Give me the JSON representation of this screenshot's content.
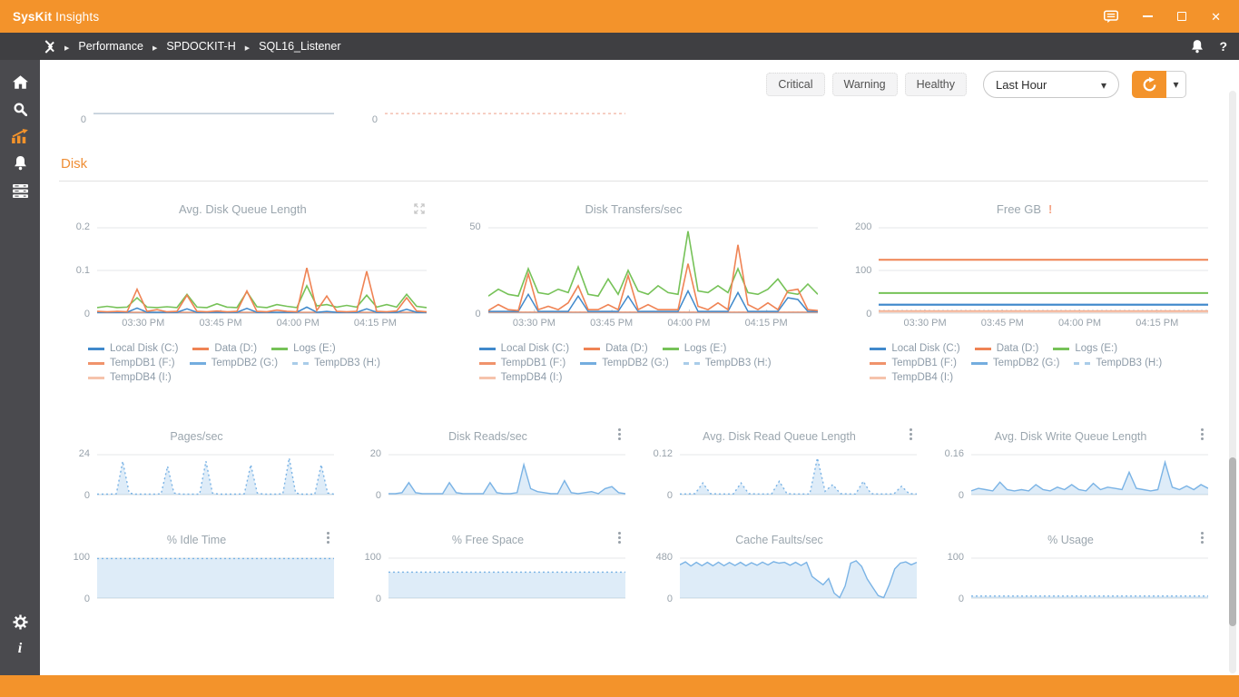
{
  "titlebar": {
    "brand_bold": "SysKit",
    "brand_rest": " Insights"
  },
  "breadcrumb": {
    "items": [
      "Performance",
      "SPDOCKIT-H",
      "SQL16_Listener"
    ]
  },
  "icons": {
    "help": "?",
    "info": "i"
  },
  "filters": {
    "chips": [
      "Critical",
      "Warning",
      "Healthy"
    ],
    "time_range": "Last Hour"
  },
  "section_title": "Disk",
  "time_labels": [
    "03:30 PM",
    "03:45 PM",
    "04:00 PM",
    "04:15 PM"
  ],
  "legend": [
    {
      "label": "Local Disk (C:)",
      "color": "#4089CB"
    },
    {
      "label": "Data (D:)",
      "color": "#EF8354"
    },
    {
      "label": "Logs (E:)",
      "color": "#76C258"
    },
    {
      "label": "TempDB1 (F:)",
      "color": "#F0936B"
    },
    {
      "label": "TempDB2 (G:)",
      "color": "#74ADDF"
    },
    {
      "label": "TempDB3 (H:)",
      "color": "#A9CCE9",
      "dash": true
    },
    {
      "label": "TempDB4 (I:)",
      "color": "#F6C3AC"
    }
  ],
  "chart_data": [
    {
      "type": "line",
      "title": "",
      "yticks": [
        0
      ],
      "ylim": [
        0,
        1
      ],
      "baseline": false,
      "series": [
        {
          "name": "flat",
          "color": "#AEBDCD",
          "width": 1.3,
          "values": [
            0.42,
            0.42
          ]
        }
      ]
    },
    {
      "type": "line",
      "title": "",
      "yticks": [
        0
      ],
      "ylim": [
        0,
        1
      ],
      "baseline": false,
      "series": [
        {
          "name": "flat",
          "color": "#F2B3A2",
          "width": 1.3,
          "dash": "3,3",
          "values": [
            0.42,
            0.42
          ]
        }
      ]
    },
    {
      "type": "line",
      "title": "Avg. Disk Queue Length",
      "yticks": [
        0.2,
        0.1,
        0
      ],
      "ylim": [
        0,
        0.2
      ],
      "grid": [
        0.2,
        0.1
      ],
      "xticks": true,
      "series": [
        {
          "name": "TempDB4 (I:)",
          "color": "#F6C3AC",
          "values": [
            0.001,
            0.001
          ]
        },
        {
          "name": "TempDB3 (H:)",
          "color": "#A9CCE9",
          "dash": "2,3",
          "values": [
            0.0015,
            0.0015
          ]
        },
        {
          "name": "TempDB2 (G:)",
          "color": "#74ADDF",
          "values": [
            0.001,
            0.001
          ]
        },
        {
          "name": "TempDB1 (F:)",
          "color": "#F0936B",
          "values": [
            0.002,
            0.002
          ]
        },
        {
          "name": "Logs (E:)",
          "color": "#76C258",
          "width": 1.6,
          "values": [
            0.013,
            0.016,
            0.013,
            0.014,
            0.036,
            0.014,
            0.013,
            0.015,
            0.013,
            0.044,
            0.014,
            0.013,
            0.022,
            0.014,
            0.013,
            0.05,
            0.015,
            0.013,
            0.02,
            0.016,
            0.013,
            0.064,
            0.017,
            0.02,
            0.014,
            0.018,
            0.014,
            0.042,
            0.014,
            0.02,
            0.014,
            0.044,
            0.016,
            0.013
          ]
        },
        {
          "name": "Local Disk (C:)",
          "color": "#4089CB",
          "width": 1.5,
          "values": [
            0.002,
            0.002,
            0.002,
            0.002,
            0.012,
            0.002,
            0.002,
            0.002,
            0.002,
            0.01,
            0.002,
            0.002,
            0.002,
            0.002,
            0.002,
            0.011,
            0.002,
            0.002,
            0.002,
            0.002,
            0.002,
            0.014,
            0.002,
            0.004,
            0.002,
            0.002,
            0.002,
            0.01,
            0.002,
            0.002,
            0.002,
            0.009,
            0.002,
            0.002
          ]
        },
        {
          "name": "Data (D:)",
          "color": "#EF8354",
          "width": 1.6,
          "values": [
            0.004,
            0.003,
            0.004,
            0.003,
            0.056,
            0.004,
            0.008,
            0.003,
            0.004,
            0.042,
            0.004,
            0.003,
            0.005,
            0.003,
            0.004,
            0.052,
            0.004,
            0.003,
            0.007,
            0.004,
            0.003,
            0.106,
            0.006,
            0.04,
            0.004,
            0.003,
            0.004,
            0.098,
            0.004,
            0.003,
            0.005,
            0.036,
            0.005,
            0.003
          ]
        }
      ]
    },
    {
      "type": "line",
      "title": "Disk Transfers/sec",
      "yticks": [
        50,
        0
      ],
      "ylim": [
        0,
        50
      ],
      "grid": [
        50
      ],
      "xticks": true,
      "series": [
        {
          "name": "TempDB4 (I:)",
          "color": "#F6C3AC",
          "values": [
            0.4,
            0.4
          ]
        },
        {
          "name": "TempDB3 (H:)",
          "color": "#A9CCE9",
          "dash": "2,3",
          "values": [
            0.5,
            0.5
          ]
        },
        {
          "name": "TempDB2 (G:)",
          "color": "#74ADDF",
          "values": [
            0.4,
            0.4
          ]
        },
        {
          "name": "TempDB1 (F:)",
          "color": "#F0936B",
          "values": [
            0.6,
            0.6
          ]
        },
        {
          "name": "Logs (E:)",
          "color": "#76C258",
          "width": 1.6,
          "values": [
            10,
            14,
            11,
            10,
            26,
            12,
            11,
            14,
            12,
            27,
            11,
            10,
            20,
            11,
            25,
            13,
            11,
            16,
            12,
            11,
            48,
            13,
            12,
            16,
            12,
            26,
            12,
            11,
            14,
            20,
            12,
            11,
            17,
            11
          ]
        },
        {
          "name": "Local Disk (C:)",
          "color": "#4089CB",
          "width": 1.5,
          "values": [
            1,
            1,
            1,
            1,
            11,
            1,
            1,
            1,
            1,
            10,
            1,
            1,
            1,
            1,
            10,
            1,
            1,
            1,
            1,
            1,
            13,
            1,
            1,
            1,
            1,
            12,
            1,
            1,
            1,
            1,
            9,
            8,
            1,
            1
          ]
        },
        {
          "name": "Data (D:)",
          "color": "#EF8354",
          "width": 1.6,
          "values": [
            1.5,
            5,
            2,
            1.5,
            23,
            2,
            4,
            2,
            6,
            16,
            2,
            2,
            5,
            2,
            22,
            2,
            5,
            2,
            2,
            2,
            29,
            4,
            2,
            6,
            2,
            40,
            5,
            2,
            6,
            2,
            13,
            14,
            2,
            1.5
          ]
        }
      ]
    },
    {
      "type": "line",
      "title": "Free GB",
      "warn": "!",
      "yticks": [
        200,
        100,
        0
      ],
      "ylim": [
        0,
        200
      ],
      "grid": [
        200,
        100
      ],
      "xticks": true,
      "series": [
        {
          "name": "Data (D:)",
          "color": "#EF8354",
          "width": 2,
          "values": [
            125,
            125
          ]
        },
        {
          "name": "Logs (E:)",
          "color": "#76C258",
          "width": 2,
          "values": [
            47,
            47
          ]
        },
        {
          "name": "TempDB2 (G:)",
          "color": "#74ADDF",
          "width": 1.6,
          "values": [
            19,
            19
          ]
        },
        {
          "name": "Local Disk (C:)",
          "color": "#4089CB",
          "width": 2,
          "values": [
            20,
            20
          ]
        },
        {
          "name": "TempDB3 (H:)",
          "color": "#A9CCE9",
          "dash": "2,3",
          "values": [
            6,
            6
          ]
        },
        {
          "name": "TempDB1 (F:)",
          "color": "#F0936B",
          "width": 1.6,
          "values": [
            5,
            5
          ]
        },
        {
          "name": "TempDB4 (I:)",
          "color": "#F6C3AC",
          "width": 2,
          "values": [
            3.5,
            3.5
          ]
        }
      ]
    },
    {
      "type": "area",
      "title": "Pages/sec",
      "yticks": [
        24,
        0
      ],
      "ylim": [
        0,
        24
      ],
      "grid": [
        24
      ],
      "series": [
        {
          "name": "Pages/sec",
          "color": "#7AB3E5",
          "dash": "2,3",
          "fill": "rgba(122,179,229,0.25)",
          "values": [
            0.3,
            0.3,
            0.3,
            0.5,
            20,
            1,
            0.3,
            0.3,
            0.3,
            0.3,
            0.5,
            17,
            1,
            0.3,
            0.3,
            0.3,
            0.3,
            20,
            1,
            0.3,
            0.3,
            0.3,
            0.3,
            0.5,
            18,
            1,
            0.3,
            0.3,
            0.3,
            0.5,
            22,
            1,
            0.3,
            0.3,
            0.3,
            18,
            1,
            0.3
          ]
        }
      ]
    },
    {
      "type": "area",
      "title": "Disk Reads/sec",
      "yticks": [
        20,
        0
      ],
      "ylim": [
        0,
        20
      ],
      "grid": [
        20
      ],
      "series": [
        {
          "name": "Disk Reads/sec",
          "color": "#7AB3E5",
          "fill": "rgba(122,179,229,0.25)",
          "values": [
            0.5,
            0.5,
            1,
            6,
            1,
            0.5,
            0.5,
            0.5,
            0.5,
            6,
            1,
            0.5,
            0.5,
            0.5,
            0.5,
            6,
            1,
            0.5,
            0.5,
            1,
            15,
            3,
            1.5,
            1,
            0.5,
            0.5,
            7,
            1,
            0.5,
            1,
            1.5,
            0.5,
            3,
            4,
            1,
            0.5
          ]
        }
      ]
    },
    {
      "type": "area",
      "title": "Avg. Disk Read Queue Length",
      "yticks": [
        0.12,
        0
      ],
      "ylim": [
        0,
        0.12
      ],
      "grid": [
        0.12
      ],
      "series": [
        {
          "name": "Avg. Disk Read Queue Length",
          "color": "#7AB3E5",
          "dash": "2,3",
          "fill": "rgba(122,179,229,0.25)",
          "values": [
            0.002,
            0.002,
            0.003,
            0.035,
            0.003,
            0.002,
            0.002,
            0.002,
            0.035,
            0.003,
            0.002,
            0.002,
            0.002,
            0.04,
            0.003,
            0.002,
            0.002,
            0.002,
            0.11,
            0.01,
            0.03,
            0.003,
            0.002,
            0.002,
            0.04,
            0.003,
            0.002,
            0.002,
            0.002,
            0.025,
            0.003,
            0.002
          ]
        }
      ]
    },
    {
      "type": "area",
      "title": "Avg. Disk Write Queue Length",
      "yticks": [
        0.16,
        0
      ],
      "ylim": [
        0,
        0.16
      ],
      "grid": [
        0.16
      ],
      "series": [
        {
          "name": "Avg. Disk Write Queue Length",
          "color": "#7AB3E5",
          "fill": "rgba(122,179,229,0.25)",
          "values": [
            0.015,
            0.025,
            0.02,
            0.015,
            0.05,
            0.02,
            0.015,
            0.02,
            0.015,
            0.04,
            0.02,
            0.015,
            0.03,
            0.02,
            0.04,
            0.02,
            0.015,
            0.045,
            0.02,
            0.03,
            0.025,
            0.02,
            0.09,
            0.025,
            0.02,
            0.015,
            0.02,
            0.13,
            0.03,
            0.02,
            0.035,
            0.02,
            0.04,
            0.025
          ]
        }
      ]
    },
    {
      "type": "area",
      "title": "% Idle Time",
      "yticks": [
        100,
        0
      ],
      "ylim": [
        0,
        100
      ],
      "grid": [
        100
      ],
      "series": [
        {
          "name": "% Idle Time",
          "color": "#7AB3E5",
          "dash": "2,3",
          "fill": "rgba(122,179,229,0.25)",
          "values": [
            99,
            99
          ]
        }
      ]
    },
    {
      "type": "area",
      "title": "% Free Space",
      "yticks": [
        100,
        0
      ],
      "ylim": [
        0,
        100
      ],
      "grid": [
        100
      ],
      "series": [
        {
          "name": "% Free Space",
          "color": "#7AB3E5",
          "dash": "2,3",
          "fill": "rgba(122,179,229,0.25)",
          "values": [
            65,
            65
          ]
        }
      ]
    },
    {
      "type": "area",
      "title": "Cache Faults/sec",
      "yticks": [
        480,
        0
      ],
      "ylim": [
        0,
        480
      ],
      "grid": [
        480
      ],
      "series": [
        {
          "name": "Cache Faults/sec",
          "color": "#7AB3E5",
          "fill": "rgba(122,179,229,0.25)",
          "values": [
            400,
            435,
            385,
            430,
            390,
            430,
            388,
            432,
            390,
            428,
            392,
            430,
            388,
            425,
            395,
            432,
            398,
            438,
            420,
            430,
            395,
            430,
            392,
            430,
            260,
            210,
            160,
            235,
            60,
            5,
            145,
            420,
            448,
            380,
            230,
            130,
            30,
            5,
            160,
            350,
            420,
            435,
            400,
            430
          ]
        }
      ]
    },
    {
      "type": "area",
      "title": "% Usage",
      "yticks": [
        100,
        0
      ],
      "ylim": [
        0,
        100
      ],
      "grid": [
        100
      ],
      "series": [
        {
          "name": "% Usage",
          "color": "#7AB3E5",
          "dash": "2,3",
          "fill": "rgba(122,179,229,0.25)",
          "values": [
            5,
            5
          ]
        }
      ]
    }
  ]
}
